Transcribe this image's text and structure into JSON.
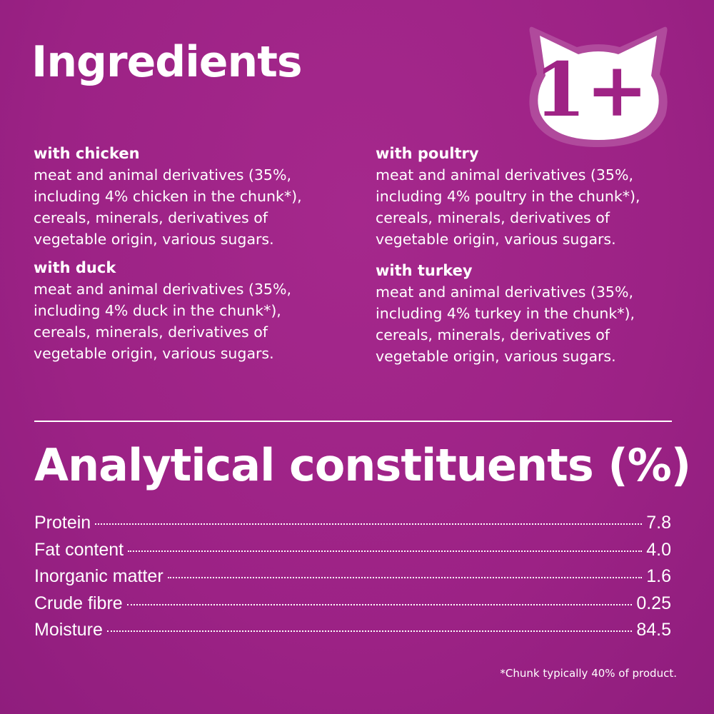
{
  "title": "Ingredients",
  "badge": {
    "text": "1+",
    "icon": "cat-head-icon"
  },
  "ingredients": [
    {
      "heading": "with chicken",
      "text": "meat and animal derivatives (35%,\nincluding 4% chicken in the chunk*),\ncereals, minerals, derivatives of\nvegetable origin, various sugars."
    },
    {
      "heading": "with duck",
      "text": "meat and animal derivatives (35%,\nincluding 4% duck in the chunk*),\ncereals, minerals, derivatives of\nvegetable origin, various sugars."
    },
    {
      "heading": "with poultry",
      "text": "meat and animal derivatives (35%,\nincluding 4% poultry in the chunk*),\ncereals, minerals, derivatives of\nvegetable origin, various sugars."
    },
    {
      "heading": "with turkey",
      "text": "meat and animal derivatives (35%,\nincluding 4% turkey in the chunk*),\ncereals, minerals, derivatives of\nvegetable origin, various sugars."
    }
  ],
  "analytical": {
    "title": "Analytical constituents (%)",
    "rows": [
      {
        "label": "Protein",
        "value": "7.8"
      },
      {
        "label": "Fat content",
        "value": "4.0"
      },
      {
        "label": "Inorganic matter",
        "value": "1.6"
      },
      {
        "label": "Crude fibre",
        "value": "0.25"
      },
      {
        "label": "Moisture",
        "value": "84.5"
      }
    ]
  },
  "footnote": "*Chunk typically 40% of product.",
  "colors": {
    "background": "#9f2385",
    "text": "#ffffff"
  }
}
